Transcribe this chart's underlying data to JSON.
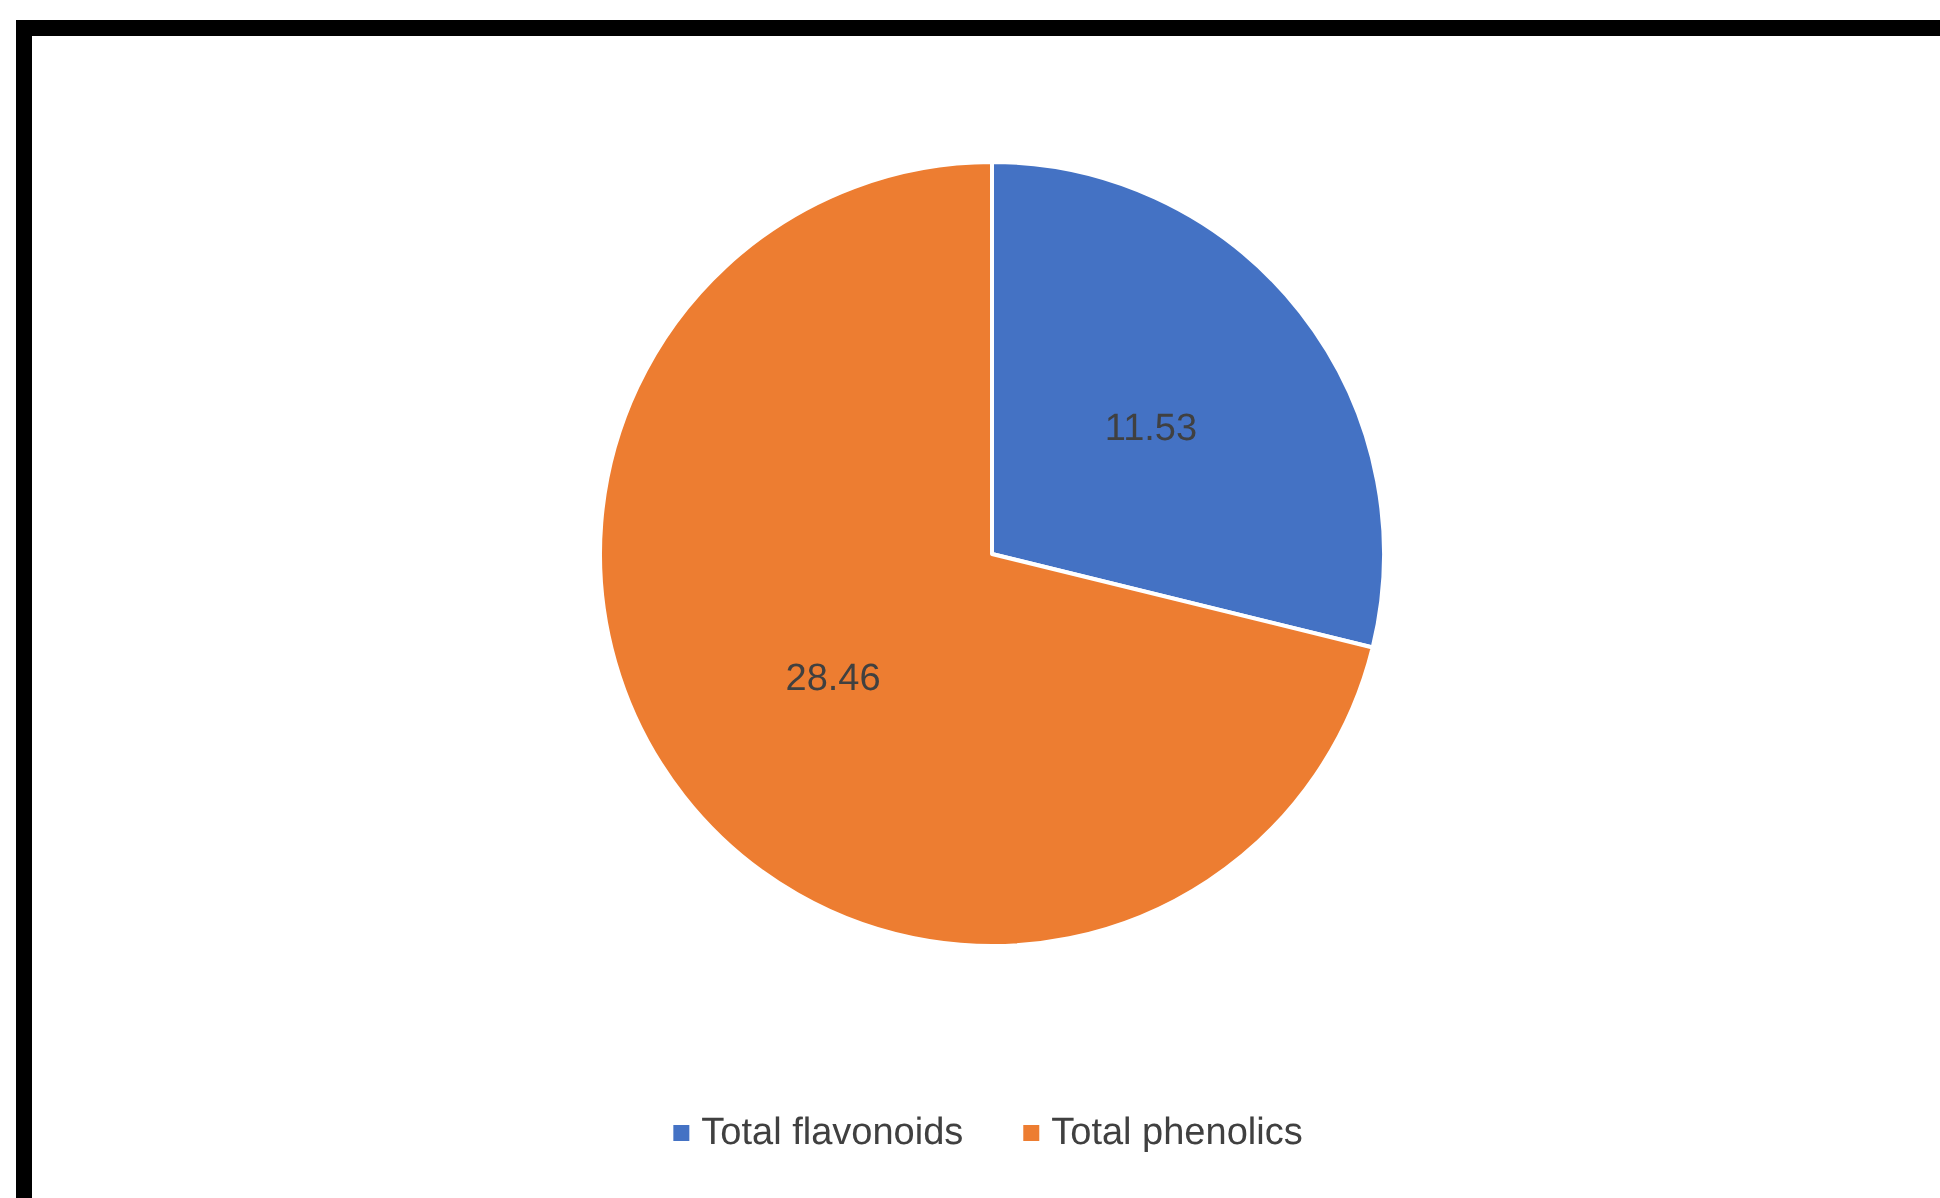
{
  "chart_data": {
    "type": "pie",
    "categories": [
      "Total flavonoids",
      "Total phenolics"
    ],
    "values": [
      11.53,
      28.46
    ],
    "colors": [
      "#4472c4",
      "#ed7d31"
    ],
    "data_labels": true,
    "legend": "bottom"
  }
}
